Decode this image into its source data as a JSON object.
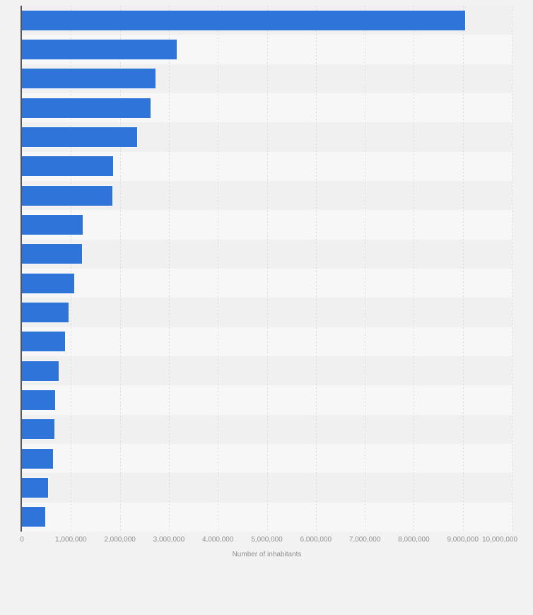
{
  "chart_data": {
    "type": "bar",
    "orientation": "horizontal",
    "title": "",
    "xlabel": "Number of inhabitants",
    "ylabel": "",
    "xlim": [
      0,
      10000000
    ],
    "x_tick_interval": 1000000,
    "x_tick_labels": [
      "0",
      "1,000,000",
      "2,000,000",
      "3,000,000",
      "4,000,000",
      "5,000,000",
      "6,000,000",
      "7,000,000",
      "8,000,000",
      "9,000,000",
      "10,000,000"
    ],
    "grid": "vertical-dashed",
    "legend": "none",
    "y_category_labels_visible": false,
    "values": [
      9050000,
      3160000,
      2730000,
      2630000,
      2350000,
      1860000,
      1840000,
      1240000,
      1230000,
      1070000,
      950000,
      880000,
      750000,
      680000,
      670000,
      630000,
      530000,
      480000
    ]
  },
  "colors": {
    "bar": "#2e74d9",
    "page_bg": "#f2f2f2",
    "band_odd": "#f0f0f1",
    "band_even": "#f7f7f7",
    "gridline": "#d9d9d9",
    "axis_line": "#55555a",
    "tick_label": "#8f8f8f",
    "axis_title_label": "#8f8f8f"
  }
}
